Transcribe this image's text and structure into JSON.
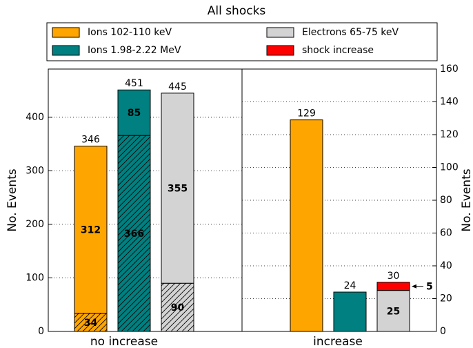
{
  "chart_data": {
    "type": "bar",
    "title": "All shocks",
    "ylabel": "No. Events",
    "y2label": "No. Events",
    "ylim": [
      0,
      490
    ],
    "yticks": [
      0,
      100,
      200,
      300,
      400
    ],
    "y2lim": [
      0,
      160
    ],
    "y2ticks": [
      0,
      20,
      40,
      60,
      80,
      100,
      120,
      140,
      160
    ],
    "grid": true,
    "series": [
      {
        "name": "Ions 102-110 keV",
        "color": "#ffa500"
      },
      {
        "name": "Ions 1.98-2.22 MeV",
        "color": "#008080"
      },
      {
        "name": "Electrons 65-75 keV",
        "color": "#d3d3d3"
      },
      {
        "name": "shock increase",
        "color": "#ff0000"
      }
    ],
    "groups": [
      {
        "category": "no increase",
        "axis": "y",
        "bars": [
          {
            "total": 346,
            "segments": [
              {
                "value": 34,
                "series": 0,
                "hatch": true,
                "label": "inside"
              },
              {
                "value": 312,
                "series": 0,
                "label": "inside"
              }
            ]
          },
          {
            "total": 451,
            "segments": [
              {
                "value": 366,
                "series": 1,
                "hatch": true,
                "label": "inside"
              },
              {
                "value": 85,
                "series": 1,
                "label": "inside"
              }
            ]
          },
          {
            "total": 445,
            "segments": [
              {
                "value": 90,
                "series": 2,
                "hatch": true,
                "label": "inside"
              },
              {
                "value": 355,
                "series": 2,
                "label": "inside"
              }
            ]
          }
        ]
      },
      {
        "category": "increase",
        "axis": "y2",
        "bars": [
          {
            "total": 129,
            "segments": [
              {
                "value": 129,
                "series": 0
              }
            ]
          },
          {
            "total": 24,
            "segments": [
              {
                "value": 24,
                "series": 1
              }
            ]
          },
          {
            "total": 30,
            "segments": [
              {
                "value": 25,
                "series": 2,
                "label": "inside"
              },
              {
                "value": 5,
                "series": 3,
                "label": "arrow"
              }
            ]
          }
        ]
      }
    ]
  }
}
